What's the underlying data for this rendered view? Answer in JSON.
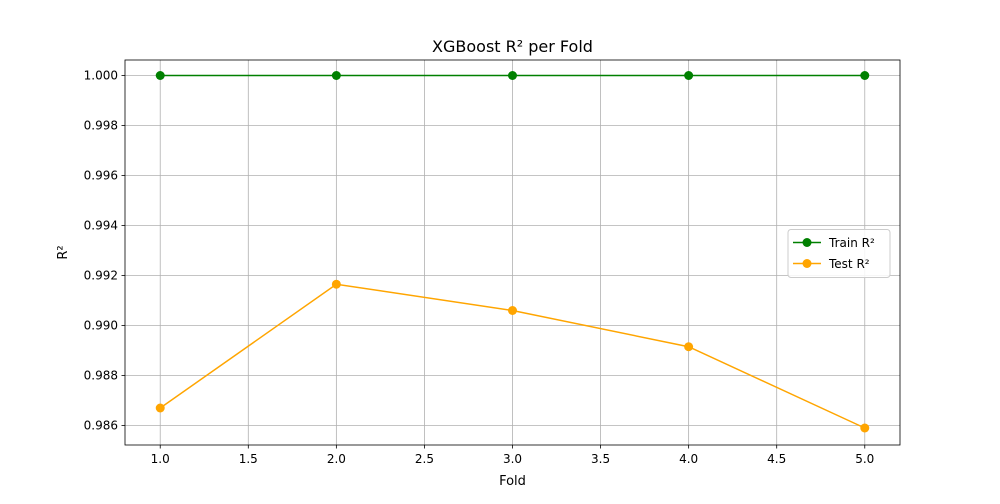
{
  "chart_data": {
    "type": "line",
    "title": "XGBoost R² per Fold",
    "xlabel": "Fold",
    "ylabel": "R²",
    "xlim": [
      0.8,
      5.2
    ],
    "ylim": [
      0.98522,
      1.00062
    ],
    "x_ticks": [
      {
        "value": 1.0,
        "label": "1.0"
      },
      {
        "value": 1.5,
        "label": "1.5"
      },
      {
        "value": 2.0,
        "label": "2.0"
      },
      {
        "value": 2.5,
        "label": "2.5"
      },
      {
        "value": 3.0,
        "label": "3.0"
      },
      {
        "value": 3.5,
        "label": "3.5"
      },
      {
        "value": 4.0,
        "label": "4.0"
      },
      {
        "value": 4.5,
        "label": "4.5"
      },
      {
        "value": 5.0,
        "label": "5.0"
      }
    ],
    "y_ticks": [
      {
        "value": 0.986,
        "label": "0.986"
      },
      {
        "value": 0.988,
        "label": "0.988"
      },
      {
        "value": 0.99,
        "label": "0.990"
      },
      {
        "value": 0.992,
        "label": "0.992"
      },
      {
        "value": 0.994,
        "label": "0.994"
      },
      {
        "value": 0.996,
        "label": "0.996"
      },
      {
        "value": 0.998,
        "label": "0.998"
      },
      {
        "value": 1.0,
        "label": "1.000"
      }
    ],
    "x": [
      1,
      2,
      3,
      4,
      5
    ],
    "series": [
      {
        "name": "Train R²",
        "color": "#008000",
        "marker": "circle",
        "values": [
          1.0,
          1.0,
          1.0,
          1.0,
          1.0
        ]
      },
      {
        "name": "Test R²",
        "color": "#ffa500",
        "marker": "circle",
        "values": [
          0.9867,
          0.99165,
          0.9906,
          0.98915,
          0.9859
        ]
      }
    ],
    "grid": true,
    "legend_position": "center-right"
  }
}
